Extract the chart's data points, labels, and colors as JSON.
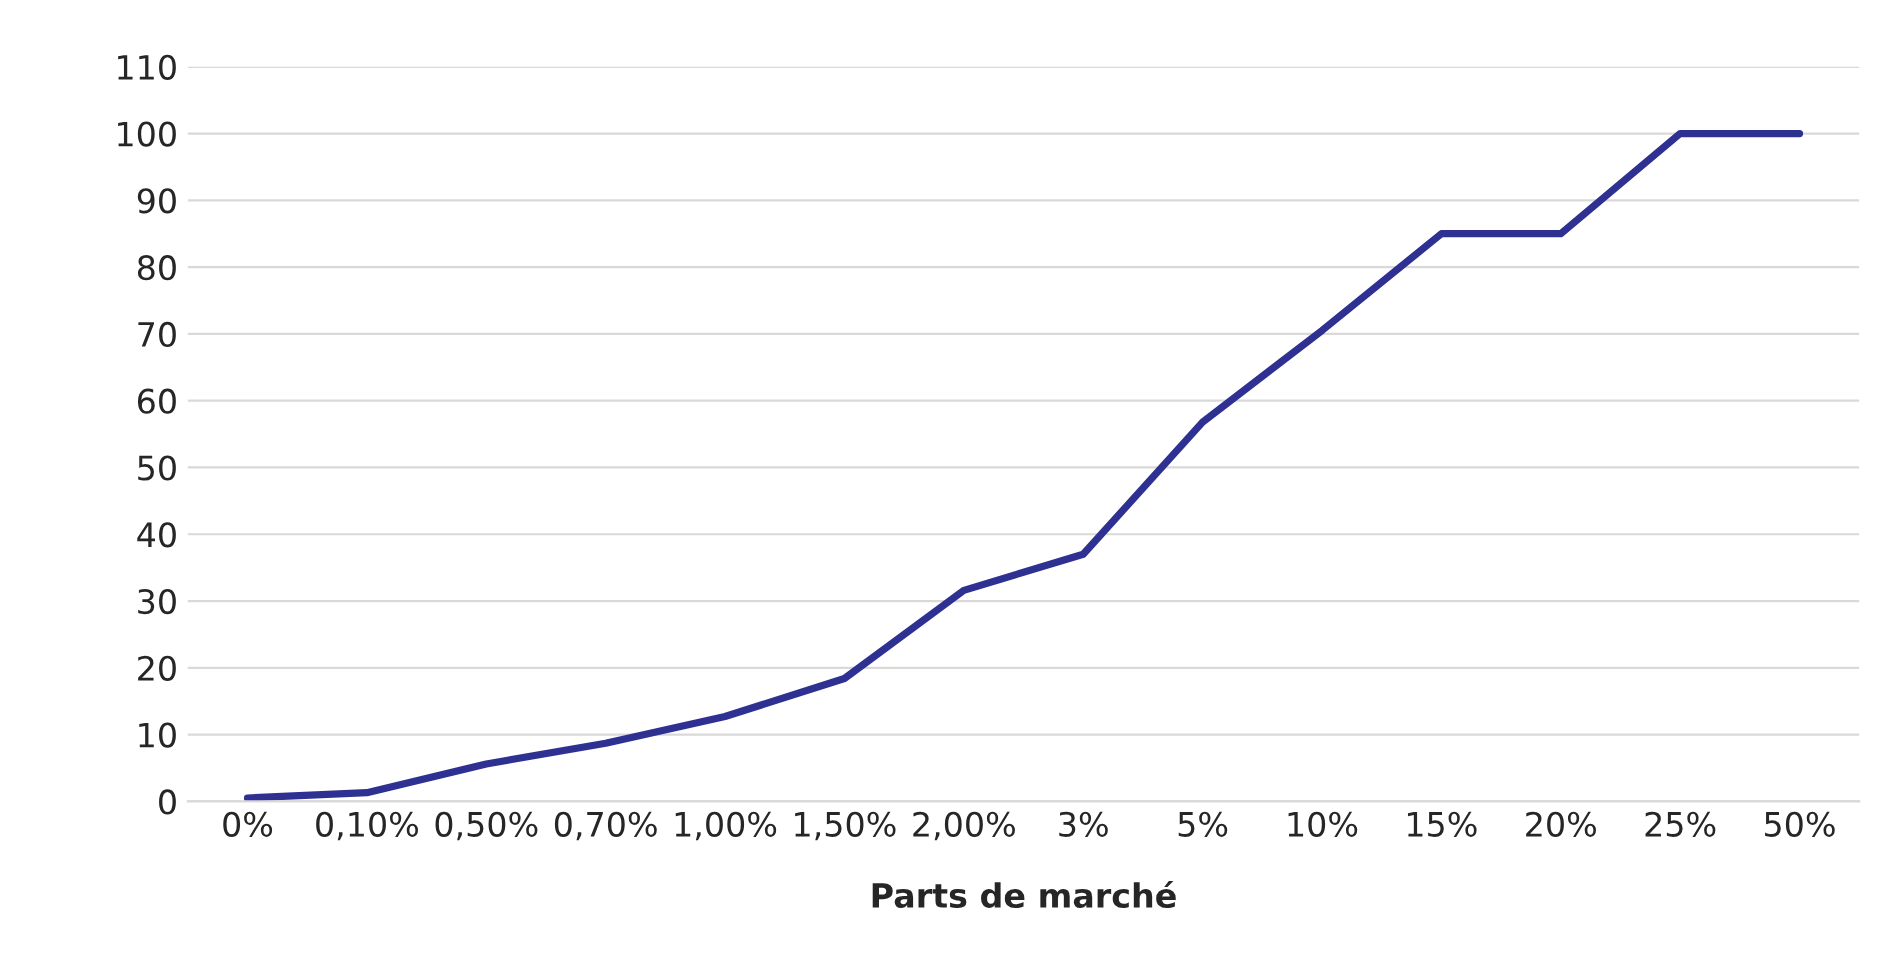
{
  "chart_data": {
    "type": "line",
    "xlabel": "Parts de marché",
    "categories": [
      "0%",
      "0,10%",
      "0,50%",
      "0,70%",
      "1,00%",
      "1,50%",
      "2,00%",
      "3%",
      "5%",
      "10%",
      "15%",
      "20%",
      "25%",
      "50%"
    ],
    "series": [
      {
        "color": "#2e3192",
        "values": [
          0.5,
          1.3,
          5.6,
          8.7,
          12.7,
          18.4,
          31.6,
          37,
          56.8,
          70.5,
          85,
          85,
          100,
          100
        ]
      }
    ],
    "ylim": [
      0,
      110
    ],
    "yticks": [
      0,
      10,
      20,
      30,
      40,
      50,
      60,
      70,
      80,
      90,
      100,
      110
    ],
    "grid": "y",
    "marker": "none",
    "line_style": "solid",
    "legend": false
  }
}
